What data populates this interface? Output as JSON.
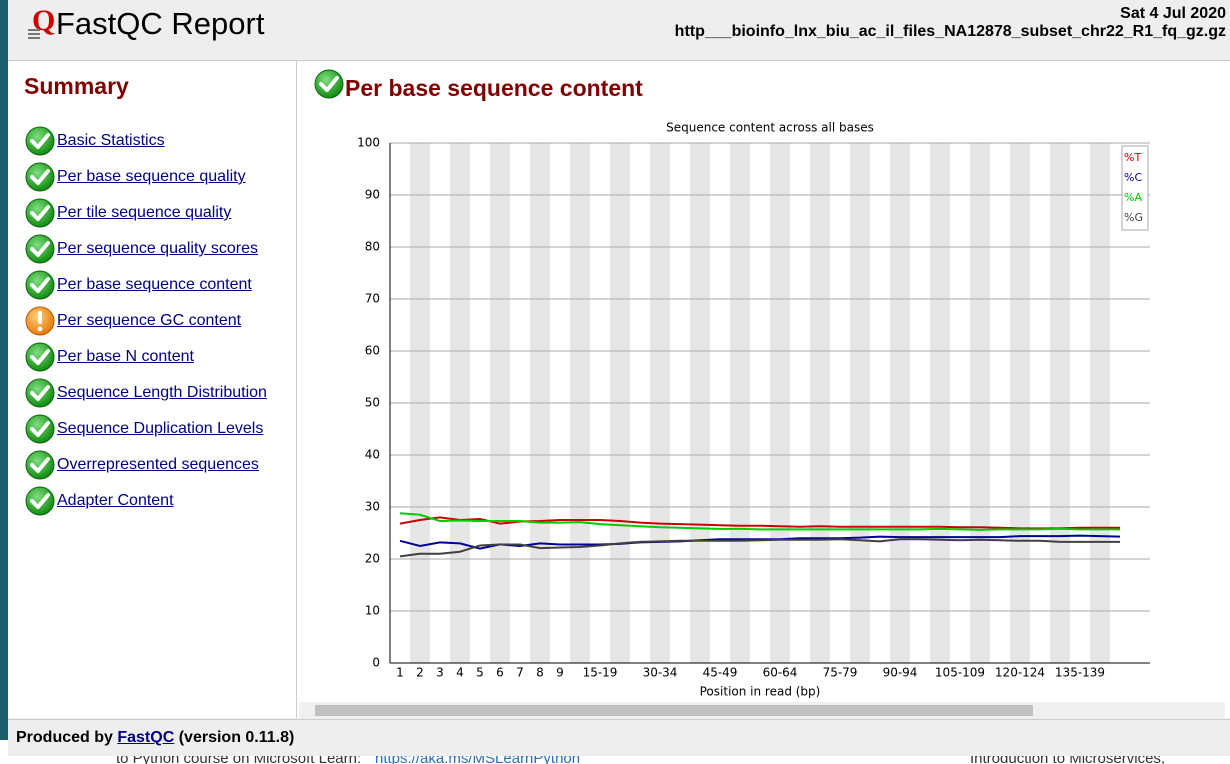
{
  "header": {
    "title": "FastQC Report",
    "date": "Sat 4 Jul 2020",
    "filename": "http___bioinfo_lnx_biu_ac_il_files_NA12878_subset_chr22_R1_fq_gz.gz"
  },
  "summary": {
    "title": "Summary",
    "modules": [
      "Basic Statistics",
      "Per base sequence quality",
      "Per tile sequence quality",
      "Per sequence quality scores",
      "Per base sequence content",
      "Per sequence GC content",
      "Per base N content",
      "Sequence Length Distribution",
      "Sequence Duplication Levels",
      "Overrepresented sequences",
      "Adapter Content"
    ]
  },
  "section_title": "Per base sequence content",
  "chart_data": {
    "type": "line",
    "title": "Sequence content across all bases",
    "x_label": "Position in read (bp)",
    "categories": [
      "1",
      "2",
      "3",
      "4",
      "5",
      "6",
      "7",
      "8",
      "9",
      null,
      "15-19",
      null,
      null,
      "30-34",
      null,
      null,
      "45-49",
      null,
      null,
      "60-64",
      null,
      null,
      "75-79",
      null,
      null,
      "90-94",
      null,
      null,
      "105-109",
      null,
      null,
      "120-124",
      null,
      null,
      "135-139",
      null,
      null
    ],
    "series": [
      {
        "name": "%T",
        "color": "#cc0000",
        "values": [
          26.8,
          27.5,
          28.0,
          27.5,
          27.7,
          26.8,
          27.2,
          27.3,
          27.5,
          27.5,
          27.5,
          27.3,
          27.0,
          26.8,
          26.7,
          26.6,
          26.5,
          26.4,
          26.4,
          26.3,
          26.2,
          26.3,
          26.2,
          26.2,
          26.2,
          26.2,
          26.2,
          26.2,
          26.1,
          26.1,
          26.0,
          25.9,
          25.9,
          25.9,
          26.0,
          26.0,
          26.0
        ]
      },
      {
        "name": "%C",
        "color": "#000099",
        "values": [
          23.5,
          22.5,
          23.2,
          23.0,
          22.0,
          22.8,
          22.5,
          23.0,
          22.8,
          22.8,
          22.8,
          22.9,
          23.2,
          23.3,
          23.4,
          23.6,
          23.8,
          23.8,
          23.8,
          23.8,
          24.0,
          24.0,
          24.0,
          24.1,
          24.3,
          24.2,
          24.2,
          24.2,
          24.2,
          24.2,
          24.2,
          24.4,
          24.4,
          24.4,
          24.5,
          24.4,
          24.3
        ]
      },
      {
        "name": "%A",
        "color": "#00cc00",
        "values": [
          28.8,
          28.5,
          27.3,
          27.4,
          27.3,
          27.3,
          27.3,
          27.0,
          27.0,
          27.1,
          26.7,
          26.5,
          26.3,
          26.1,
          26.0,
          25.9,
          25.8,
          25.8,
          25.7,
          25.7,
          25.7,
          25.7,
          25.7,
          25.7,
          25.7,
          25.7,
          25.7,
          25.8,
          25.7,
          25.6,
          25.7,
          25.7,
          25.7,
          25.8,
          25.7,
          25.7,
          25.7
        ]
      },
      {
        "name": "%G",
        "color": "#404040",
        "values": [
          20.5,
          21.0,
          21.0,
          21.4,
          22.6,
          22.8,
          22.8,
          22.1,
          22.2,
          22.3,
          22.6,
          23.0,
          23.3,
          23.4,
          23.5,
          23.5,
          23.5,
          23.5,
          23.6,
          23.7,
          23.7,
          23.7,
          23.8,
          23.6,
          23.4,
          23.8,
          23.8,
          23.7,
          23.6,
          23.7,
          23.6,
          23.5,
          23.5,
          23.3,
          23.3,
          23.3,
          23.3
        ]
      }
    ],
    "ylim": [
      0,
      100
    ],
    "yticks": [
      0,
      10,
      20,
      30,
      40,
      50,
      60,
      70,
      80,
      90,
      100
    ],
    "grid": true,
    "legend": "top-right"
  },
  "footer": {
    "prefix": "Produced by",
    "link": "FastQC",
    "suffix": "(version 0.11.8)"
  },
  "background": {
    "left": "to Python course on Microsoft Learn:",
    "link": "https://aka.ms/MSLearnPython",
    "right": "Introduction to Microservices,"
  }
}
